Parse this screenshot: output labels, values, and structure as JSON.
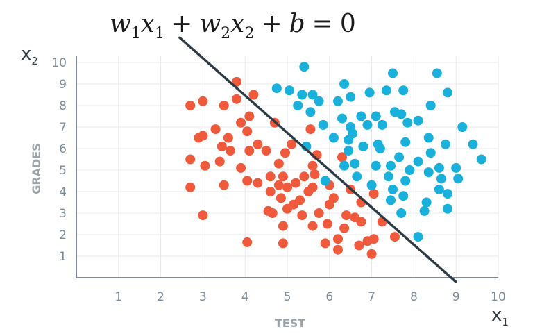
{
  "chart_data": {
    "type": "scatter",
    "equation": {
      "w1": "w",
      "s1": "1",
      "x1": "x",
      "s2": "1",
      "plus1": "+",
      "w2": "w",
      "s3": "2",
      "x2": "x",
      "s4": "2",
      "plus2": "+",
      "b": "b",
      "eq": "=",
      "zero": "0"
    },
    "xlabel": "TEST",
    "ylabel": "GRADES",
    "x_var": {
      "base": "x",
      "sub": "1"
    },
    "y_var": {
      "base": "x",
      "sub": "2"
    },
    "xlim": [
      0,
      10
    ],
    "ylim": [
      0,
      10
    ],
    "xticks": [
      "1",
      "2",
      "3",
      "4",
      "5",
      "6",
      "7",
      "8",
      "9",
      "10"
    ],
    "yticks": [
      "1",
      "2",
      "3",
      "4",
      "5",
      "6",
      "7",
      "8",
      "9",
      "10"
    ],
    "grid": true,
    "decision_line": {
      "from": [
        2.45,
        11.15
      ],
      "to": [
        9.0,
        -0.2
      ],
      "color": "#2d3b46"
    },
    "series": [
      {
        "color": "#f05a3c",
        "points": [
          [
            2.7,
            8.0
          ],
          [
            2.9,
            6.5
          ],
          [
            3.0,
            6.6
          ],
          [
            3.0,
            8.2
          ],
          [
            2.7,
            5.5
          ],
          [
            2.7,
            4.2
          ],
          [
            3.0,
            2.9
          ],
          [
            3.05,
            5.2
          ],
          [
            3.3,
            6.9
          ],
          [
            3.4,
            5.4
          ],
          [
            3.45,
            6.1
          ],
          [
            3.5,
            4.3
          ],
          [
            3.5,
            8.0
          ],
          [
            3.6,
            6.5
          ],
          [
            3.65,
            5.9
          ],
          [
            3.8,
            8.3
          ],
          [
            3.8,
            9.1
          ],
          [
            3.9,
            5.1
          ],
          [
            3.9,
            7.2
          ],
          [
            4.05,
            4.5
          ],
          [
            4.05,
            6.8
          ],
          [
            4.1,
            5.9
          ],
          [
            4.1,
            7.5
          ],
          [
            4.2,
            8.5
          ],
          [
            4.3,
            6.2
          ],
          [
            4.05,
            1.65
          ],
          [
            4.3,
            4.4
          ],
          [
            4.5,
            5.9
          ],
          [
            4.55,
            3.1
          ],
          [
            4.6,
            4.0
          ],
          [
            4.6,
            4.7
          ],
          [
            4.65,
            3.0
          ],
          [
            4.7,
            7.2
          ],
          [
            4.8,
            4.3
          ],
          [
            4.8,
            5.3
          ],
          [
            4.85,
            3.7
          ],
          [
            4.9,
            4.7
          ],
          [
            4.9,
            2.4
          ],
          [
            4.9,
            1.6
          ],
          [
            4.95,
            5.8
          ],
          [
            5.0,
            3.2
          ],
          [
            5.0,
            4.2
          ],
          [
            5.1,
            6.2
          ],
          [
            5.15,
            3.4
          ],
          [
            5.2,
            4.4
          ],
          [
            5.3,
            3.6
          ],
          [
            5.35,
            2.9
          ],
          [
            5.4,
            4.7
          ],
          [
            5.5,
            4.0
          ],
          [
            5.55,
            6.9
          ],
          [
            5.6,
            5.2
          ],
          [
            5.6,
            4.2
          ],
          [
            5.6,
            2.4
          ],
          [
            5.65,
            4.8
          ],
          [
            5.7,
            5.7
          ],
          [
            5.75,
            3.0
          ],
          [
            5.9,
            1.6
          ],
          [
            5.95,
            2.5
          ],
          [
            6.0,
            4.3
          ],
          [
            6.0,
            3.4
          ],
          [
            6.1,
            3.7
          ],
          [
            6.2,
            1.8
          ],
          [
            6.2,
            1.3
          ],
          [
            6.3,
            5.6
          ],
          [
            6.35,
            2.3
          ],
          [
            6.4,
            2.9
          ],
          [
            6.5,
            4.1
          ],
          [
            6.6,
            2.8
          ],
          [
            6.7,
            1.5
          ],
          [
            6.75,
            3.5
          ],
          [
            6.75,
            2.6
          ],
          [
            6.9,
            1.7
          ],
          [
            7.0,
            1.1
          ],
          [
            7.05,
            1.8
          ],
          [
            7.05,
            3.9
          ],
          [
            7.25,
            2.6
          ],
          [
            7.55,
            1.9
          ]
        ]
      },
      {
        "color": "#19b0dc",
        "points": [
          [
            4.75,
            8.8
          ],
          [
            5.05,
            8.7
          ],
          [
            5.25,
            8.0
          ],
          [
            5.35,
            8.5
          ],
          [
            5.4,
            9.8
          ],
          [
            5.45,
            6.1
          ],
          [
            5.55,
            7.7
          ],
          [
            5.6,
            8.5
          ],
          [
            5.75,
            8.2
          ],
          [
            5.85,
            7.1
          ],
          [
            5.9,
            4.5
          ],
          [
            6.1,
            6.5
          ],
          [
            6.2,
            8.2
          ],
          [
            6.3,
            7.4
          ],
          [
            6.35,
            5.2
          ],
          [
            6.35,
            9.0
          ],
          [
            6.45,
            6.4
          ],
          [
            6.45,
            5.9
          ],
          [
            6.5,
            7.0
          ],
          [
            6.55,
            6.7
          ],
          [
            6.5,
            8.4
          ],
          [
            6.6,
            5.3
          ],
          [
            6.65,
            4.7
          ],
          [
            6.75,
            7.5
          ],
          [
            6.8,
            6.1
          ],
          [
            6.9,
            7.1
          ],
          [
            6.95,
            8.6
          ],
          [
            7.0,
            4.3
          ],
          [
            7.1,
            7.5
          ],
          [
            7.1,
            5.2
          ],
          [
            7.15,
            6.2
          ],
          [
            7.2,
            6.0
          ],
          [
            7.25,
            7.1
          ],
          [
            7.35,
            8.7
          ],
          [
            7.4,
            4.7
          ],
          [
            7.45,
            3.6
          ],
          [
            7.45,
            5.2
          ],
          [
            7.5,
            9.5
          ],
          [
            7.5,
            4.1
          ],
          [
            7.55,
            7.7
          ],
          [
            7.65,
            5.6
          ],
          [
            7.7,
            7.6
          ],
          [
            7.7,
            3.0
          ],
          [
            7.75,
            3.8
          ],
          [
            7.75,
            8.7
          ],
          [
            7.8,
            4.5
          ],
          [
            7.8,
            6.3
          ],
          [
            7.85,
            7.2
          ],
          [
            7.9,
            5.0
          ],
          [
            8.1,
            5.4
          ],
          [
            8.1,
            7.3
          ],
          [
            8.1,
            1.9
          ],
          [
            8.25,
            3.1
          ],
          [
            8.3,
            3.5
          ],
          [
            8.35,
            4.9
          ],
          [
            8.35,
            6.5
          ],
          [
            8.4,
            5.8
          ],
          [
            8.4,
            8.0
          ],
          [
            8.55,
            9.5
          ],
          [
            8.6,
            4.1
          ],
          [
            8.6,
            5.1
          ],
          [
            8.65,
            4.6
          ],
          [
            8.75,
            6.2
          ],
          [
            8.8,
            8.6
          ],
          [
            8.8,
            3.9
          ],
          [
            8.8,
            3.2
          ],
          [
            9.0,
            5.1
          ],
          [
            9.05,
            4.6
          ],
          [
            9.15,
            7.0
          ],
          [
            9.4,
            6.2
          ],
          [
            9.6,
            5.5
          ]
        ]
      }
    ]
  }
}
